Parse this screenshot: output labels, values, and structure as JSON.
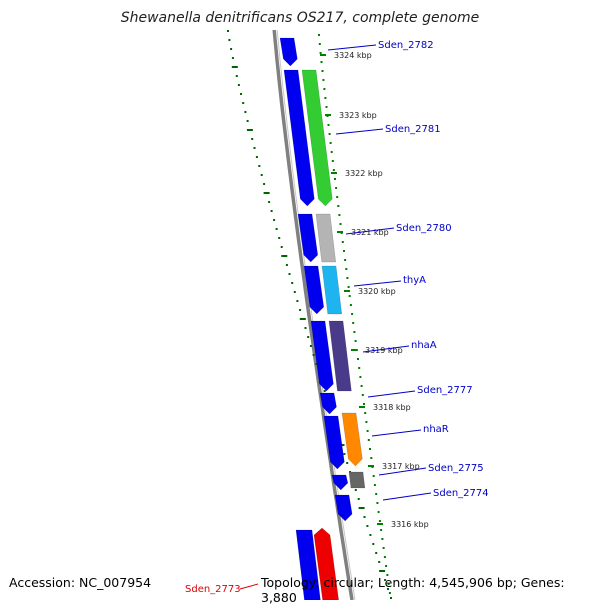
{
  "title": "Shewanella denitrificans OS217, complete genome",
  "accession": "Accession: NC_007954",
  "summary": "Topology: circular; Length: 4,545,906 bp; Genes: 3,880",
  "colors": {
    "backbone": "#808080",
    "tick_dark_green": "#006400",
    "tick_green": "#008000",
    "label_blue": "#0000c8",
    "label_red": "#e00000",
    "strand_blue": "#0000ee",
    "green": "#33cc33",
    "gray": "#b4b4b4",
    "cyan": "#1eb4f0",
    "purple": "#4a3a8a",
    "orange": "#ff8800",
    "dark_gray": "#666666",
    "red": "#ee0000"
  },
  "kbp_ticks": [
    "3324 kbp",
    "3323 kbp",
    "3322 kbp",
    "3321 kbp",
    "3320 kbp",
    "3319 kbp",
    "3318 kbp",
    "3317 kbp",
    "3316 kbp"
  ],
  "gene_labels": [
    "Sden_2782",
    "Sden_2781",
    "Sden_2780",
    "thyA",
    "nhaA",
    "Sden_2777",
    "nhaR",
    "Sden_2775",
    "Sden_2774",
    "Sden_2773"
  ]
}
